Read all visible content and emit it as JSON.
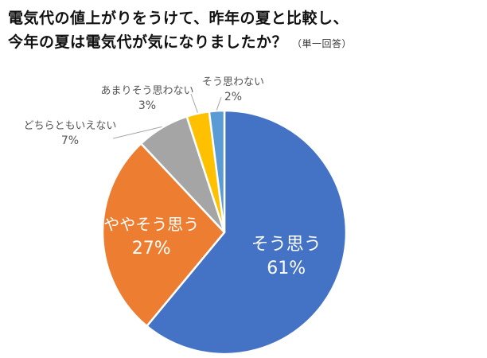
{
  "title": {
    "line1": "電気代の値上がりをうけて、昨年の夏と比較し、",
    "line2": "今年の夏は電気代が気になりましたか？",
    "note": "（単一回答）"
  },
  "chart_data": {
    "type": "pie",
    "start": "12 o'clock, clockwise",
    "slices": [
      {
        "label": "そう思う",
        "value": 61,
        "value_label": "61%",
        "color": "#4472C4"
      },
      {
        "label": "ややそう思う",
        "value": 27,
        "value_label": "27%",
        "color": "#ED7D31"
      },
      {
        "label": "どちらともいえない",
        "value": 7,
        "value_label": "7%",
        "color": "#A5A5A5"
      },
      {
        "label": "あまりそう思わない",
        "value": 3,
        "value_label": "3%",
        "color": "#FFC000"
      },
      {
        "label": "そう思わない",
        "value": 2,
        "value_label": "2%",
        "color": "#5B9BD5"
      }
    ]
  }
}
